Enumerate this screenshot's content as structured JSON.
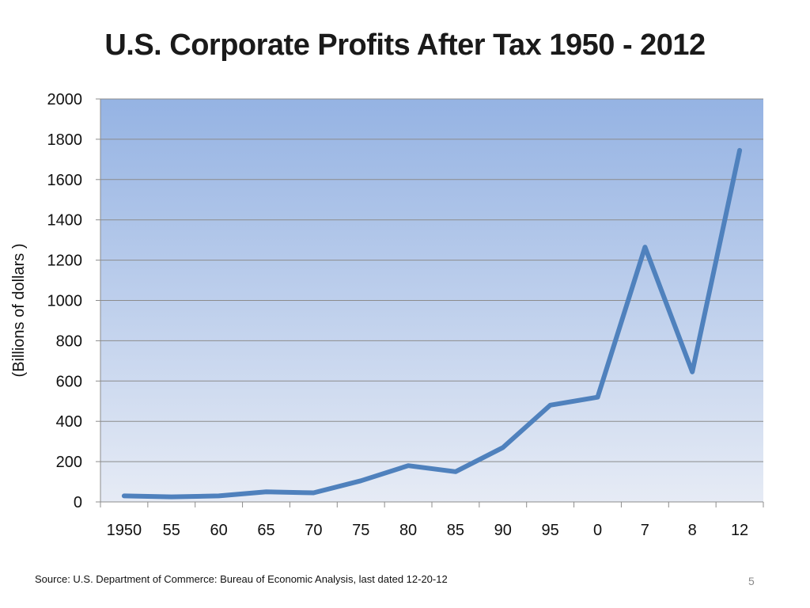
{
  "slide": {
    "title": "U.S. Corporate Profits After Tax 1950 - 2012",
    "source": "Source: U.S. Department of Commerce: Bureau of Economic Analysis, last dated 12-20-12",
    "page_number": "5"
  },
  "colors": {
    "line": "#4f81bd",
    "plot_top": "#95b3e3",
    "plot_bottom": "#e6ebf5",
    "grid": "#8c8c8c",
    "axis": "#8c8c8c"
  },
  "chart_data": {
    "type": "line",
    "title": "U.S. Corporate Profits After Tax 1950 - 2012",
    "xlabel": "",
    "ylabel": "(Billions of dollars )",
    "categories": [
      "1950",
      "55",
      "60",
      "65",
      "70",
      "75",
      "80",
      "85",
      "90",
      "95",
      "0",
      "7",
      "8",
      "12"
    ],
    "series": [
      {
        "values": [
          30,
          25,
          30,
          50,
          45,
          105,
          180,
          150,
          270,
          480,
          520,
          1265,
          645,
          1745
        ]
      }
    ],
    "ylim": [
      0,
      2000
    ],
    "yticks": [
      0,
      200,
      400,
      600,
      800,
      1000,
      1200,
      1400,
      1600,
      1800,
      2000
    ],
    "grid": true,
    "legend": "none"
  }
}
